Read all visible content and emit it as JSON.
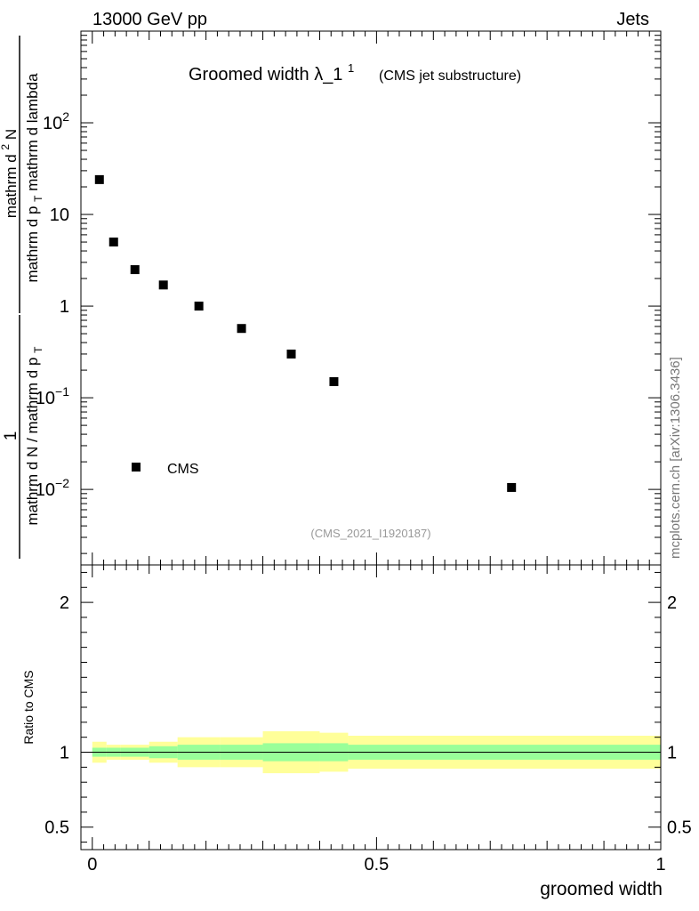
{
  "header": {
    "left": "13000 GeV pp",
    "right": "Jets"
  },
  "chart_data": {
    "type": "scatter",
    "title": "Groomed width",
    "title_symbol": "λ_1",
    "title_sup": "1",
    "subtitle": "(CMS jet substructure)",
    "watermark": "(CMS_2021_I1920187)",
    "side_label": "mcplots.cern.ch [arXiv:1306.3436]",
    "ylabel_numerator_parts": [
      "mathrm d",
      "2",
      "N"
    ],
    "ylabel_denominator_parts": [
      "mathrm d p",
      "T",
      " mathrm d lambda"
    ],
    "ylabel_prefactor_numerator": "1",
    "ylabel_prefactor_denominator_parts": [
      "mathrm d N / mathrm d p",
      "T"
    ],
    "xlabel": "groomed width",
    "yscale": "log",
    "ylim": [
      0.0015,
      1000
    ],
    "xlim": [
      -0.02,
      1.0
    ],
    "main_ticks": [
      {
        "value": 100,
        "base": "10",
        "exp": "2"
      },
      {
        "value": 10,
        "base": "10",
        "exp": ""
      },
      {
        "value": 1,
        "base": "1",
        "exp": ""
      },
      {
        "value": 0.1,
        "base": "10",
        "exp": "−1"
      },
      {
        "value": 0.01,
        "base": "10",
        "exp": "−2"
      }
    ],
    "series": [
      {
        "name": "CMS",
        "marker": "square",
        "x": [
          0.0125,
          0.0375,
          0.075,
          0.125,
          0.1875,
          0.2625,
          0.35,
          0.425,
          0.7375
        ],
        "y": [
          24,
          5.0,
          2.5,
          1.7,
          1.0,
          0.57,
          0.3,
          0.15,
          0.0105
        ]
      }
    ],
    "ratio": {
      "ylabel": "Ratio to CMS",
      "ylim": [
        0.35,
        2.25
      ],
      "ticks": [
        "0.5",
        "1",
        "2"
      ],
      "x_ticks": [
        "0",
        "0.5",
        "1"
      ],
      "bands": [
        {
          "x0": 0.0,
          "x1": 0.025,
          "inner": [
            0.97,
            1.03
          ],
          "outer": [
            0.93,
            1.07
          ]
        },
        {
          "x0": 0.025,
          "x1": 0.05,
          "inner": [
            0.97,
            1.03
          ],
          "outer": [
            0.95,
            1.05
          ]
        },
        {
          "x0": 0.05,
          "x1": 0.1,
          "inner": [
            0.97,
            1.03
          ],
          "outer": [
            0.95,
            1.05
          ]
        },
        {
          "x0": 0.1,
          "x1": 0.15,
          "inner": [
            0.96,
            1.04
          ],
          "outer": [
            0.93,
            1.07
          ]
        },
        {
          "x0": 0.15,
          "x1": 0.225,
          "inner": [
            0.95,
            1.05
          ],
          "outer": [
            0.9,
            1.1
          ]
        },
        {
          "x0": 0.225,
          "x1": 0.3,
          "inner": [
            0.95,
            1.05
          ],
          "outer": [
            0.9,
            1.1
          ]
        },
        {
          "x0": 0.3,
          "x1": 0.4,
          "inner": [
            0.94,
            1.06
          ],
          "outer": [
            0.86,
            1.14
          ]
        },
        {
          "x0": 0.4,
          "x1": 0.45,
          "inner": [
            0.94,
            1.06
          ],
          "outer": [
            0.87,
            1.13
          ]
        },
        {
          "x0": 0.45,
          "x1": 1.0,
          "inner": [
            0.95,
            1.05
          ],
          "outer": [
            0.89,
            1.11
          ]
        }
      ]
    }
  },
  "colors": {
    "inner_band": "#99ff99",
    "outer_band": "#ffff99",
    "watermark": "#999999",
    "side_label": "#777777"
  }
}
